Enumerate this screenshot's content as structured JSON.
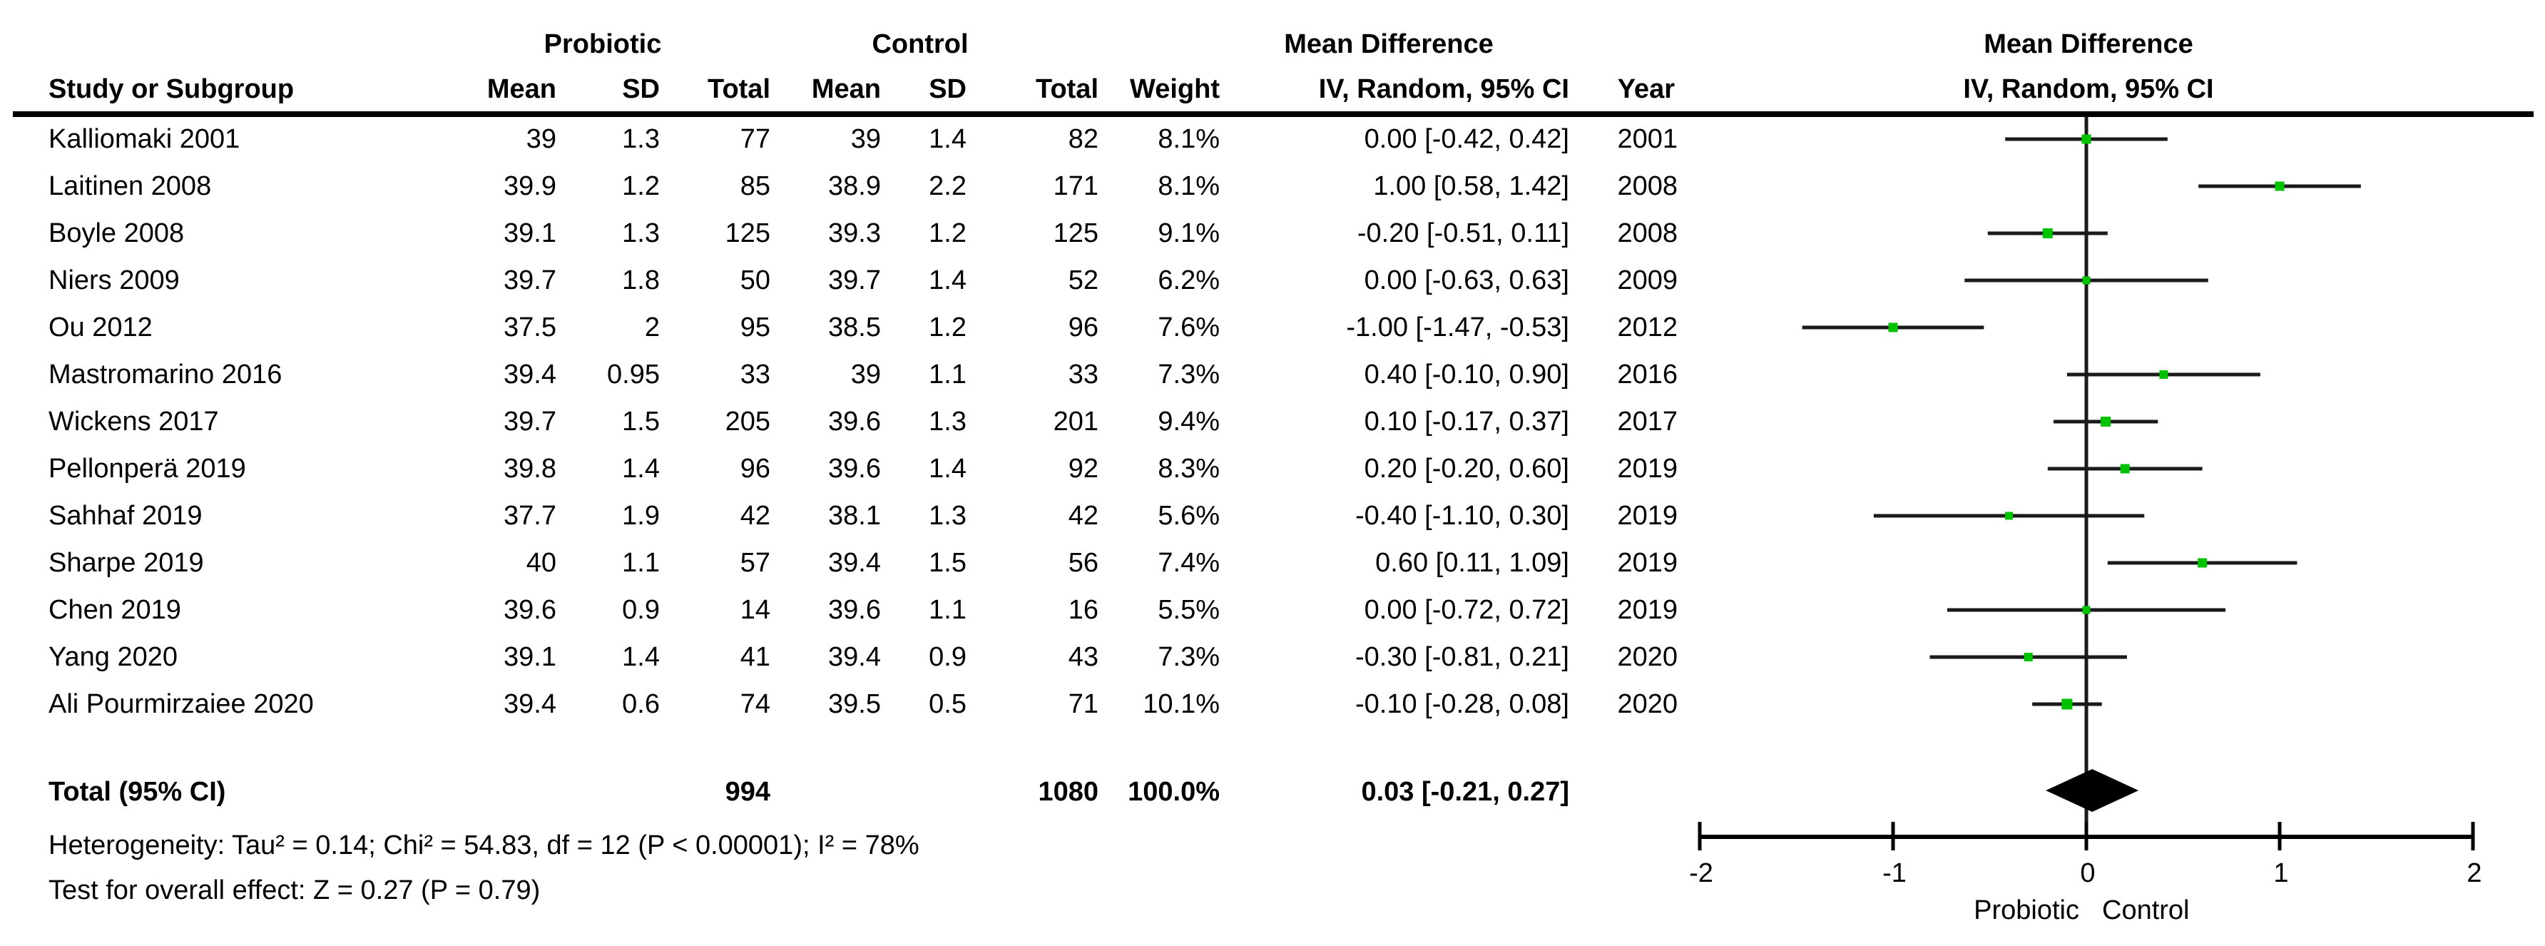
{
  "header": {
    "group_probiotic": "Probiotic",
    "group_control": "Control",
    "group_mean_difference": "Mean Difference",
    "study": "Study or Subgroup",
    "mean": "Mean",
    "sd": "SD",
    "total": "Total",
    "weight": "Weight",
    "iv_random": "IV, Random, 95% CI",
    "year": "Year",
    "plot_title": "Mean Difference",
    "plot_subtitle": "IV, Random, 95% CI"
  },
  "chart_data": {
    "type": "forest",
    "title": "Mean Difference",
    "subtitle": "IV, Random, 95% CI",
    "effect_measure": "Mean Difference, IV, Random, 95% CI",
    "xlim": [
      -2,
      2
    ],
    "x_ticks": [
      -2,
      -1,
      0,
      1,
      2
    ],
    "axis_label_left": "Probiotic",
    "axis_label_right": "Control",
    "studies": [
      {
        "name": "Kalliomaki 2001",
        "p_mean": "39",
        "p_sd": "1.3",
        "p_total": "77",
        "c_mean": "39",
        "c_sd": "1.4",
        "c_total": "82",
        "weight": "8.1%",
        "ci": "0.00 [-0.42, 0.42]",
        "year": "2001",
        "est": 0.0,
        "lo": -0.42,
        "hi": 0.42,
        "weight_value": 8.1
      },
      {
        "name": "Laitinen 2008",
        "p_mean": "39.9",
        "p_sd": "1.2",
        "p_total": "85",
        "c_mean": "38.9",
        "c_sd": "2.2",
        "c_total": "171",
        "weight": "8.1%",
        "ci": "1.00 [0.58, 1.42]",
        "year": "2008",
        "est": 1.0,
        "lo": 0.58,
        "hi": 1.42,
        "weight_value": 8.1
      },
      {
        "name": "Boyle 2008",
        "p_mean": "39.1",
        "p_sd": "1.3",
        "p_total": "125",
        "c_mean": "39.3",
        "c_sd": "1.2",
        "c_total": "125",
        "weight": "9.1%",
        "ci": "-0.20 [-0.51, 0.11]",
        "year": "2008",
        "est": -0.2,
        "lo": -0.51,
        "hi": 0.11,
        "weight_value": 9.1
      },
      {
        "name": "Niers 2009",
        "p_mean": "39.7",
        "p_sd": "1.8",
        "p_total": "50",
        "c_mean": "39.7",
        "c_sd": "1.4",
        "c_total": "52",
        "weight": "6.2%",
        "ci": "0.00 [-0.63, 0.63]",
        "year": "2009",
        "est": 0.0,
        "lo": -0.63,
        "hi": 0.63,
        "weight_value": 6.2
      },
      {
        "name": "Ou 2012",
        "p_mean": "37.5",
        "p_sd": "2",
        "p_total": "95",
        "c_mean": "38.5",
        "c_sd": "1.2",
        "c_total": "96",
        "weight": "7.6%",
        "ci": "-1.00 [-1.47, -0.53]",
        "year": "2012",
        "est": -1.0,
        "lo": -1.47,
        "hi": -0.53,
        "weight_value": 7.6
      },
      {
        "name": "Mastromarino 2016",
        "p_mean": "39.4",
        "p_sd": "0.95",
        "p_total": "33",
        "c_mean": "39",
        "c_sd": "1.1",
        "c_total": "33",
        "weight": "7.3%",
        "ci": "0.40 [-0.10, 0.90]",
        "year": "2016",
        "est": 0.4,
        "lo": -0.1,
        "hi": 0.9,
        "weight_value": 7.3
      },
      {
        "name": "Wickens 2017",
        "p_mean": "39.7",
        "p_sd": "1.5",
        "p_total": "205",
        "c_mean": "39.6",
        "c_sd": "1.3",
        "c_total": "201",
        "weight": "9.4%",
        "ci": "0.10 [-0.17, 0.37]",
        "year": "2017",
        "est": 0.1,
        "lo": -0.17,
        "hi": 0.37,
        "weight_value": 9.4
      },
      {
        "name": "Pellonperä 2019",
        "p_mean": "39.8",
        "p_sd": "1.4",
        "p_total": "96",
        "c_mean": "39.6",
        "c_sd": "1.4",
        "c_total": "92",
        "weight": "8.3%",
        "ci": "0.20 [-0.20, 0.60]",
        "year": "2019",
        "est": 0.2,
        "lo": -0.2,
        "hi": 0.6,
        "weight_value": 8.3
      },
      {
        "name": "Sahhaf 2019",
        "p_mean": "37.7",
        "p_sd": "1.9",
        "p_total": "42",
        "c_mean": "38.1",
        "c_sd": "1.3",
        "c_total": "42",
        "weight": "5.6%",
        "ci": "-0.40 [-1.10, 0.30]",
        "year": "2019",
        "est": -0.4,
        "lo": -1.1,
        "hi": 0.3,
        "weight_value": 5.6
      },
      {
        "name": "Sharpe 2019",
        "p_mean": "40",
        "p_sd": "1.1",
        "p_total": "57",
        "c_mean": "39.4",
        "c_sd": "1.5",
        "c_total": "56",
        "weight": "7.4%",
        "ci": "0.60 [0.11, 1.09]",
        "year": "2019",
        "est": 0.6,
        "lo": 0.11,
        "hi": 1.09,
        "weight_value": 7.4
      },
      {
        "name": "Chen 2019",
        "p_mean": "39.6",
        "p_sd": "0.9",
        "p_total": "14",
        "c_mean": "39.6",
        "c_sd": "1.1",
        "c_total": "16",
        "weight": "5.5%",
        "ci": "0.00 [-0.72, 0.72]",
        "year": "2019",
        "est": 0.0,
        "lo": -0.72,
        "hi": 0.72,
        "weight_value": 5.5
      },
      {
        "name": "Yang 2020",
        "p_mean": "39.1",
        "p_sd": "1.4",
        "p_total": "41",
        "c_mean": "39.4",
        "c_sd": "0.9",
        "c_total": "43",
        "weight": "7.3%",
        "ci": "-0.30 [-0.81, 0.21]",
        "year": "2020",
        "est": -0.3,
        "lo": -0.81,
        "hi": 0.21,
        "weight_value": 7.3
      },
      {
        "name": "Ali Pourmirzaiee 2020",
        "p_mean": "39.4",
        "p_sd": "0.6",
        "p_total": "74",
        "c_mean": "39.5",
        "c_sd": "0.5",
        "c_total": "71",
        "weight": "10.1%",
        "ci": "-0.10 [-0.28, 0.08]",
        "year": "2020",
        "est": -0.1,
        "lo": -0.28,
        "hi": 0.08,
        "weight_value": 10.1
      }
    ],
    "total": {
      "label": "Total (95% CI)",
      "p_total": "994",
      "c_total": "1080",
      "weight": "100.0%",
      "ci": "0.03 [-0.21, 0.27]",
      "est": 0.03,
      "lo": -0.21,
      "hi": 0.27
    }
  },
  "footer": {
    "heterogeneity": "Heterogeneity: Tau² = 0.14; Chi² = 54.83, df = 12 (P < 0.00001); I² = 78%",
    "overall_effect": "Test for overall effect: Z = 0.27 (P = 0.79)"
  },
  "colors": {
    "marker_green": "#00c300",
    "line_black": "#1a1a1a",
    "diamond_black": "#000000"
  }
}
